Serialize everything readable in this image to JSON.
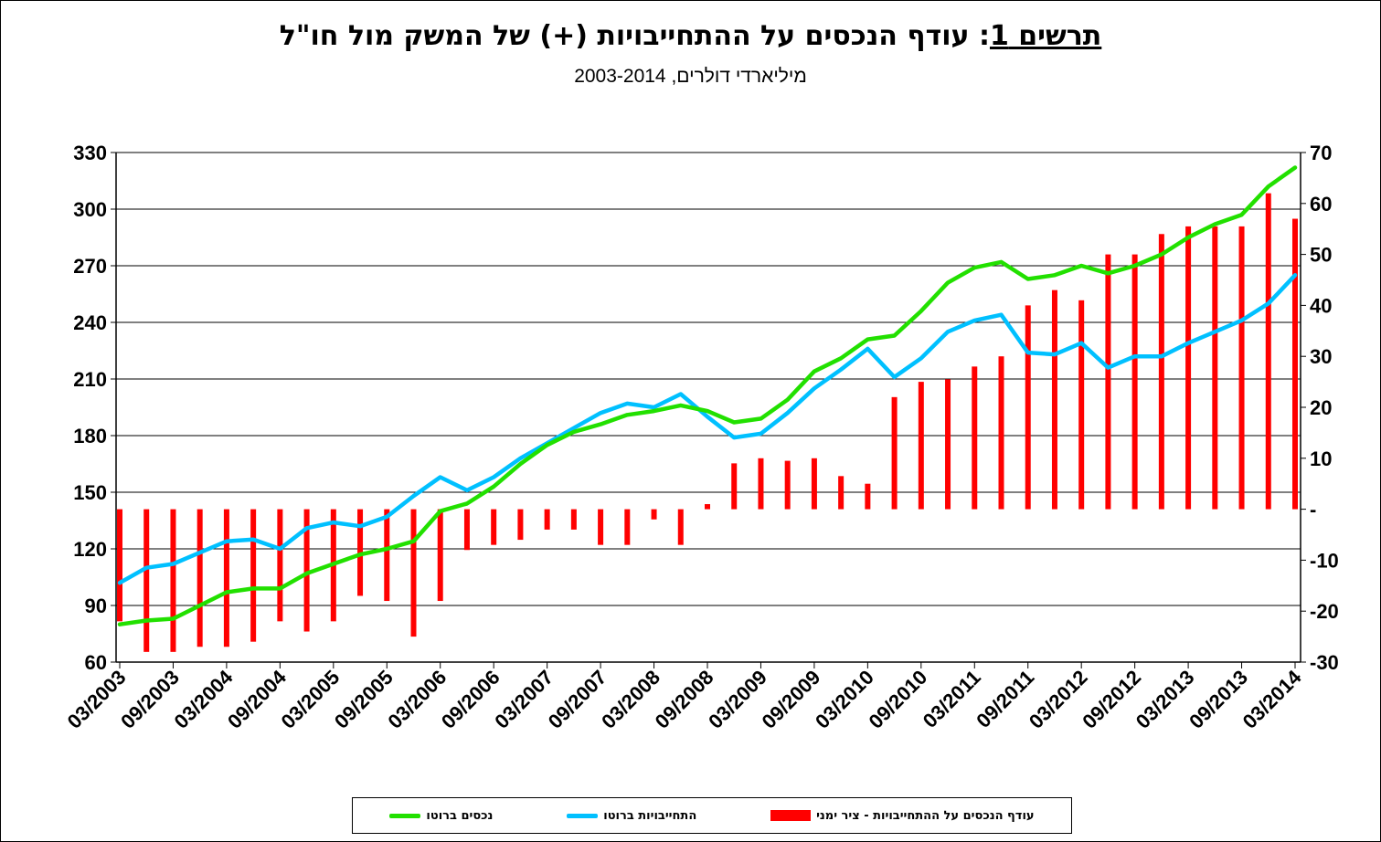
{
  "title": {
    "prefix": "תרשים 1",
    "main": ": עודף הנכסים על ההתחייבויות (+) של המשק מול חו\"ל"
  },
  "subtitle": "מיליארדי דולרים, 2003-2014",
  "legend": {
    "series": [
      {
        "key": "surplus",
        "label": "עודף הנכסים על ההתחייבויות - ציר ימני",
        "color": "#ff0000",
        "kind": "bar"
      },
      {
        "key": "liabilities",
        "label": "התחייבויות  ברוטו",
        "color": "#00c0ff",
        "kind": "line"
      },
      {
        "key": "assets",
        "label": "נכסים ברוטו",
        "color": "#22e000",
        "kind": "line"
      }
    ]
  },
  "chart_data": {
    "type": "bar+line",
    "x_tick_labels": [
      "03/2003",
      "09/2003",
      "03/2004",
      "09/2004",
      "03/2005",
      "09/2005",
      "03/2006",
      "09/2006",
      "03/2007",
      "09/2007",
      "03/2008",
      "09/2008",
      "03/2009",
      "09/2009",
      "03/2010",
      "09/2010",
      "03/2011",
      "09/2011",
      "03/2012",
      "09/2012",
      "03/2013",
      "09/2013",
      "03/2014"
    ],
    "y_left": {
      "min": 60,
      "max": 330,
      "ticks": [
        "60",
        "90",
        "120",
        "150",
        "180",
        "210",
        "240",
        "270",
        "300",
        "330"
      ]
    },
    "y_right": {
      "min": -30,
      "max": 70,
      "ticks": [
        "-30",
        "-20",
        "-10",
        "-",
        "10",
        "20",
        "30",
        "40",
        "50",
        "60",
        "70"
      ]
    },
    "grid": true,
    "legend_position": "bottom",
    "series": [
      {
        "name": "עודף הנכסים על ההתחייבויות - ציר ימני",
        "type": "bar",
        "axis": "right",
        "color": "#ff0000",
        "values": [
          -22,
          -28,
          -28,
          -27,
          -27,
          -26,
          -22,
          -24,
          -22,
          -17,
          -18,
          -25,
          -18,
          -8,
          -7,
          -6,
          -4,
          -4,
          -7,
          -7,
          -2,
          -7,
          1,
          9,
          10,
          9.5,
          10,
          6.5,
          5,
          22,
          25,
          25.5,
          28,
          30,
          40,
          43,
          41,
          50,
          50,
          54,
          55.5,
          55.5,
          55.5,
          62,
          57
        ]
      },
      {
        "name": "התחייבויות  ברוטו",
        "type": "line",
        "axis": "left",
        "color": "#00c0ff",
        "values": [
          102,
          110,
          112,
          118,
          124,
          125,
          120,
          131,
          134,
          132,
          137,
          148,
          158,
          151,
          158,
          168,
          176,
          184,
          192,
          197,
          195,
          202,
          190,
          179,
          181,
          192,
          205,
          215,
          226,
          211,
          221,
          235,
          241,
          244,
          224,
          223,
          229,
          216,
          222,
          222,
          229,
          235,
          241,
          250,
          265
        ]
      },
      {
        "name": "נכסים ברוטו",
        "type": "line",
        "axis": "left",
        "color": "#22e000",
        "values": [
          80,
          82,
          83,
          90,
          97,
          99,
          99,
          107,
          112,
          117,
          120,
          124,
          140,
          144,
          153,
          165,
          175,
          182,
          186,
          191,
          193,
          196,
          193,
          187,
          189,
          199,
          214,
          221,
          231,
          233,
          246,
          261,
          269,
          272,
          263,
          265,
          270,
          266,
          270,
          276,
          285,
          292,
          297,
          312,
          322
        ]
      }
    ]
  }
}
